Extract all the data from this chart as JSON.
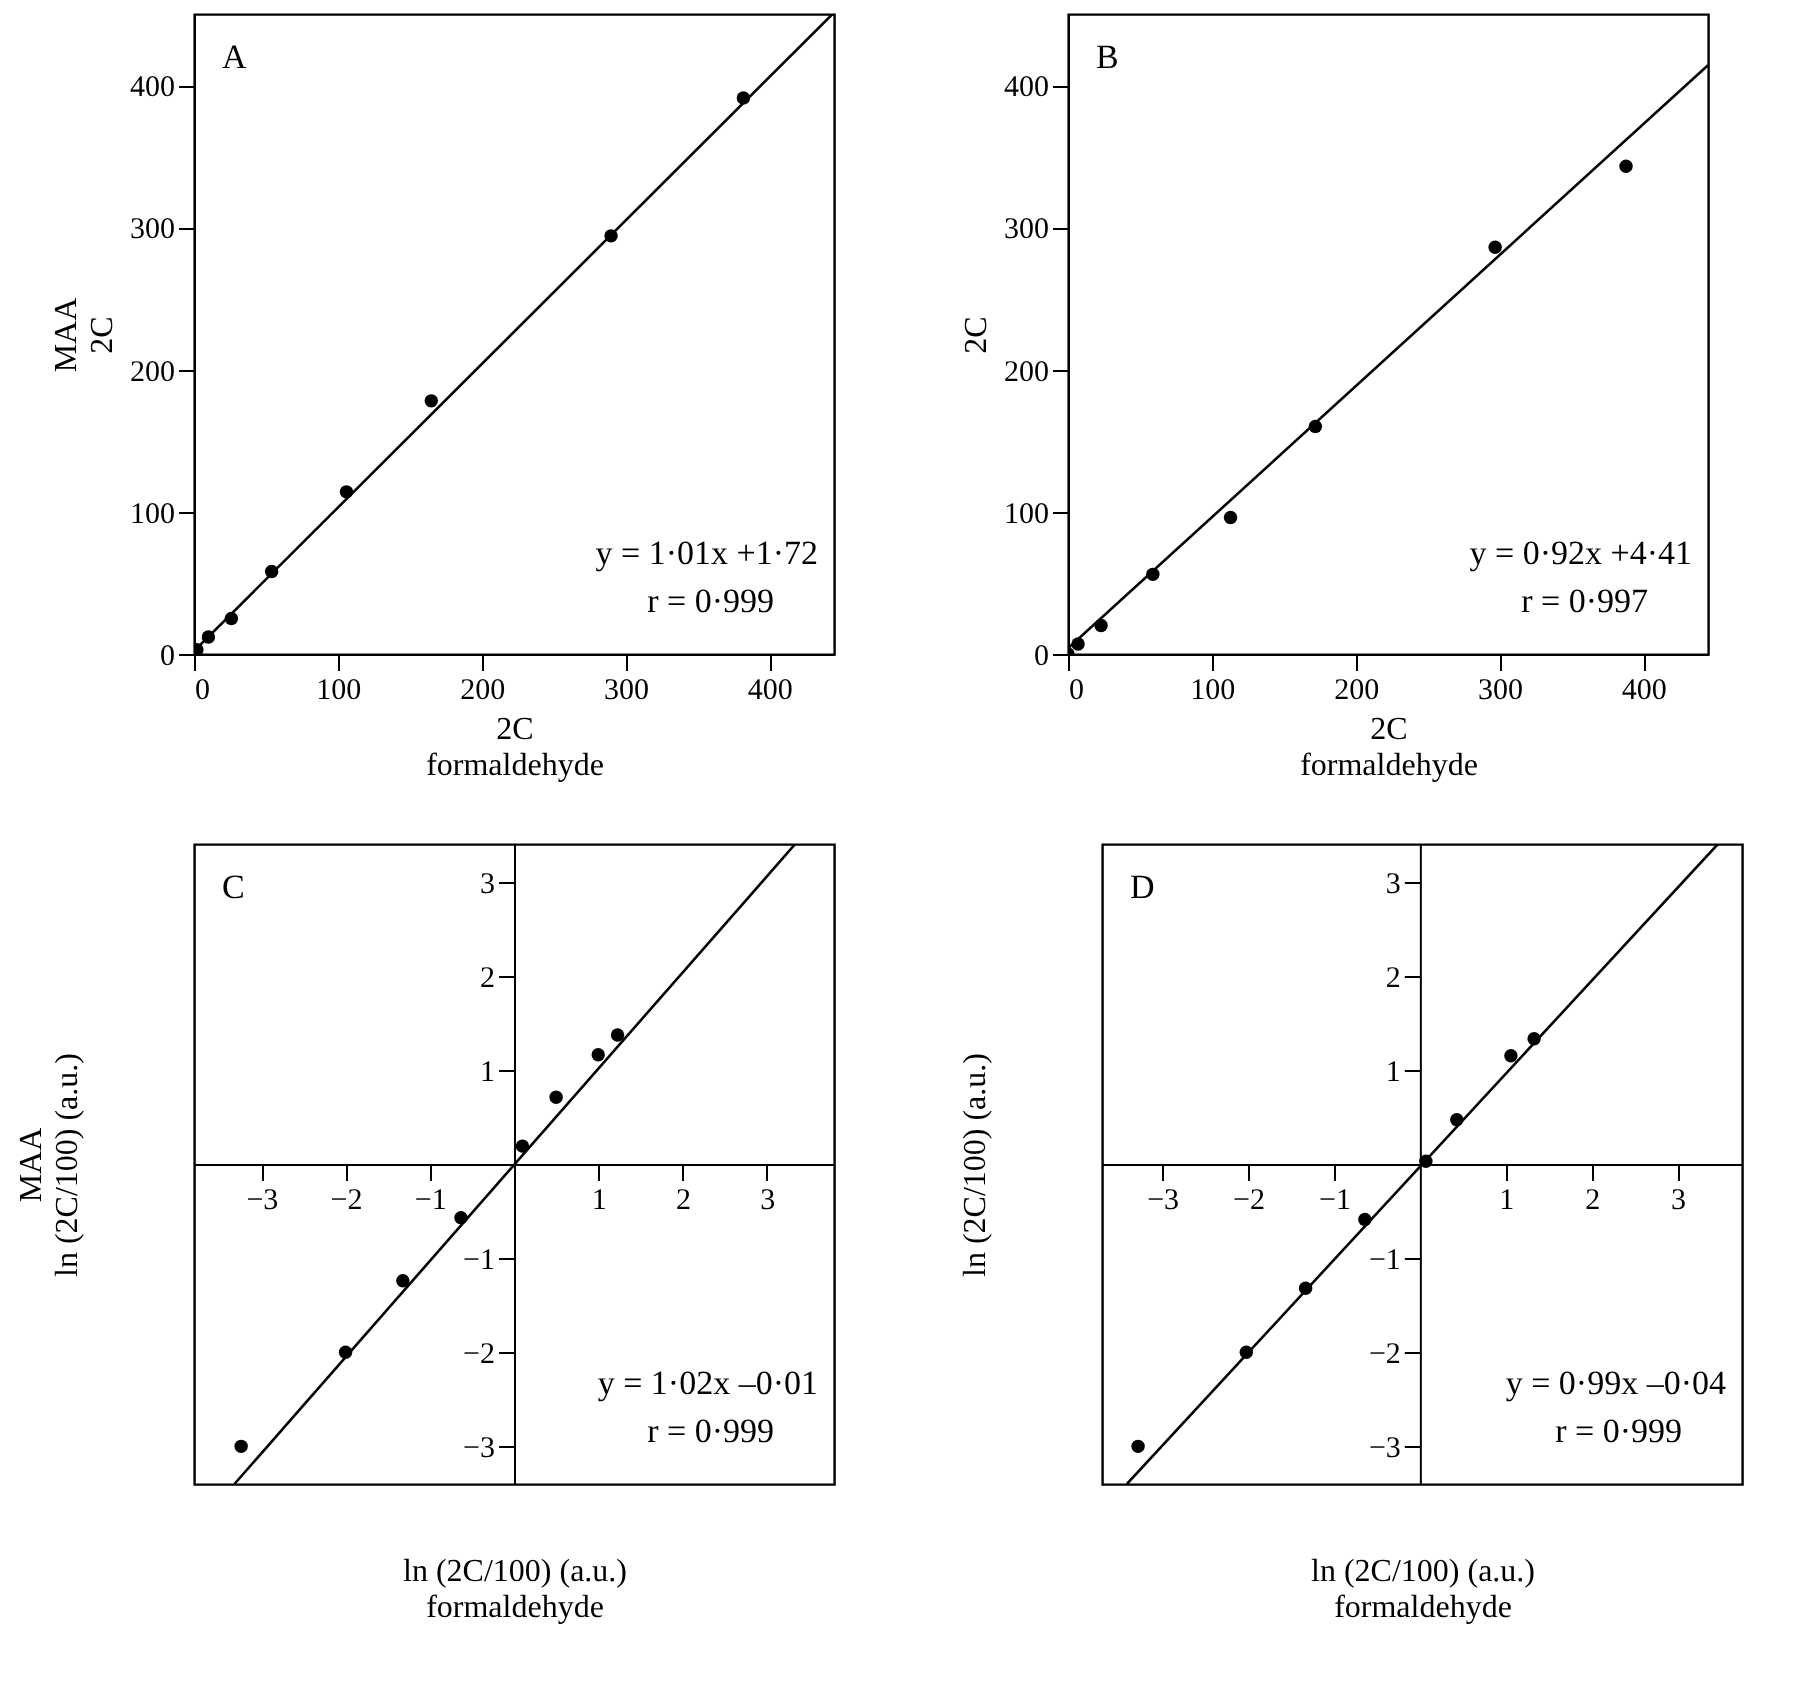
{
  "chart_data": [
    {
      "type": "scatter",
      "xlabel": "2C\nformaldehyde",
      "ylabel": "MAA\n2C",
      "xlim": [
        0,
        445
      ],
      "ylim": [
        0,
        450
      ],
      "xticks": [
        0,
        100,
        200,
        300,
        400
      ],
      "yticks": [
        0,
        100,
        200,
        300,
        400
      ],
      "grid": false,
      "annotations": [
        "A",
        "y = 1·01x +1·72",
        "r = 0·999"
      ],
      "series": [
        {
          "marker": "circle",
          "color": "#000000",
          "x": [
            2,
            10,
            26,
            54,
            106,
            165,
            290,
            382
          ],
          "values": [
            3,
            12,
            25,
            58,
            114,
            178,
            294,
            391
          ]
        },
        {
          "type": "line",
          "color": "#000000",
          "line_style": "solid",
          "x": [
            0,
            444
          ],
          "values": [
            2,
            450
          ]
        }
      ]
    },
    {
      "type": "scatter",
      "xlabel": "2C\nformaldehyde",
      "ylabel": "2C",
      "xlim": [
        0,
        445
      ],
      "ylim": [
        0,
        450
      ],
      "xticks": [
        0,
        100,
        200,
        300,
        400
      ],
      "yticks": [
        0,
        100,
        200,
        300,
        400
      ],
      "grid": false,
      "annotations": [
        "B",
        "y = 0·92x +4·41",
        "r = 0·997"
      ],
      "series": [
        {
          "marker": "circle",
          "color": "#000000",
          "x": [
            0,
            7,
            23,
            59,
            113,
            172,
            297,
            388
          ],
          "values": [
            0,
            7,
            20,
            56,
            96,
            160,
            286,
            343
          ]
        },
        {
          "type": "line",
          "color": "#000000",
          "line_style": "solid",
          "x": [
            0,
            445
          ],
          "values": [
            4,
            414
          ]
        }
      ]
    },
    {
      "type": "scatter",
      "xlabel": "ln (2C/100) (a.u.)\nformaldehyde",
      "ylabel": "MAA\nln (2C/100) (a.u.)",
      "xlim": [
        -3.8,
        3.8
      ],
      "ylim": [
        -3.4,
        3.4
      ],
      "xticks": [
        -3,
        -2,
        -1,
        1,
        2,
        3
      ],
      "yticks": [
        -3,
        -2,
        -1,
        1,
        2,
        3
      ],
      "grid": false,
      "annotations": [
        "C",
        "y = 1·02x –0·01",
        "r = 0·999"
      ],
      "series": [
        {
          "marker": "circle",
          "color": "#000000",
          "x": [
            -3.24,
            -2.0,
            -1.32,
            -0.63,
            0.1,
            0.5,
            1.0,
            1.23
          ],
          "values": [
            -3.0,
            -2.0,
            -1.24,
            -0.57,
            0.19,
            0.71,
            1.16,
            1.37
          ]
        },
        {
          "type": "line",
          "color": "#000000",
          "line_style": "solid",
          "x": [
            -3.32,
            3.34
          ],
          "values": [
            -3.4,
            3.4
          ]
        }
      ]
    },
    {
      "type": "scatter",
      "xlabel": "ln (2C/100) (a.u.)\nformaldehyde",
      "ylabel": "ln (2C/100) (a.u.)",
      "xlim": [
        -3.7,
        3.75
      ],
      "ylim": [
        -3.4,
        3.4
      ],
      "xticks": [
        -3,
        -2,
        -1,
        1,
        2,
        3
      ],
      "yticks": [
        -3,
        -2,
        -1,
        1,
        2,
        3
      ],
      "grid": false,
      "annotations": [
        "D",
        "y = 0·99x –0·04",
        "r = 0·999"
      ],
      "series": [
        {
          "marker": "circle",
          "color": "#000000",
          "x": [
            -3.28,
            -2.02,
            -1.33,
            -0.64,
            0.07,
            0.43,
            1.06,
            1.33
          ],
          "values": [
            -3.0,
            -2.0,
            -1.32,
            -0.59,
            0.03,
            0.47,
            1.15,
            1.33
          ]
        },
        {
          "type": "line",
          "color": "#000000",
          "line_style": "solid",
          "x": [
            -3.41,
            3.47
          ],
          "values": [
            -3.4,
            3.4
          ]
        }
      ]
    }
  ]
}
